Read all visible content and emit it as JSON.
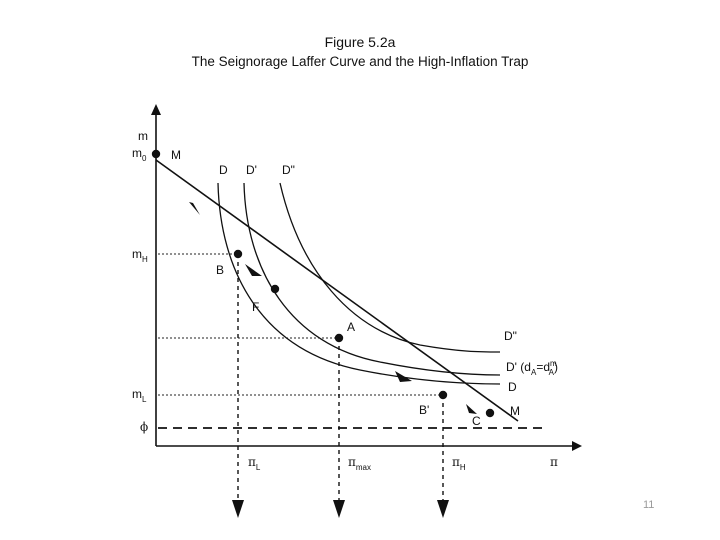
{
  "figure": {
    "number": "Figure 5.2a",
    "title": "The Seignorage Laffer Curve and the High-Inflation Trap"
  },
  "axes": {
    "y_label": "m",
    "x_label": "π",
    "y_ticks": {
      "m0": "m",
      "m0_sub": "0",
      "mH": "m",
      "mH_sub": "H",
      "mL": "m",
      "mL_sub": "L",
      "phi": "ϕ"
    },
    "x_ticks": {
      "piL": "π",
      "piL_sub": "L",
      "pimax": "π",
      "pimax_sub": "max",
      "piH": "π",
      "piH_sub": "H"
    }
  },
  "curves": {
    "D_top": "D",
    "Dp_top": "D'",
    "Dpp_top": "D\"",
    "Dpp_right": "D\"",
    "Dp_right_prefix": "D' (d",
    "Dp_right_sub1": "A",
    "Dp_right_mid": "=d",
    "Dp_right_sup": "m",
    "Dp_right_sub2": "A",
    "Dp_right_suffix": ")",
    "D_right": "D",
    "M_top": "M",
    "M_bottom": "M"
  },
  "points": {
    "B": "B",
    "F": "F",
    "A": "A",
    "Bp": "B'",
    "C": "C"
  },
  "slide_number": "11"
}
